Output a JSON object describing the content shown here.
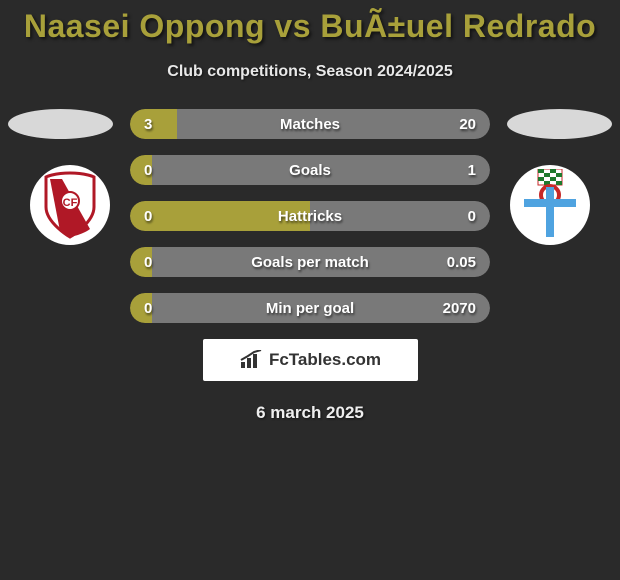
{
  "title": "Naasei Oppong vs BuÃ±uel Redrado",
  "subtitle": "Club competitions, Season 2024/2025",
  "date_text": "6 march 2025",
  "branding_text": "FcTables.com",
  "colors": {
    "left_fill": "#a8a03a",
    "right_fill": "#797979",
    "background": "#2a2a2a",
    "text": "#ffffff"
  },
  "club_left": {
    "name": "Granada",
    "badge_bg": "#ffffff",
    "stripe": "#b01826"
  },
  "club_right": {
    "name": "Racing Ferrol",
    "badge_bg": "#ffffff",
    "cross": "#4fa3e0",
    "checker_a": "#1e7a2e",
    "checker_b": "#ffffff",
    "ring": "#c62828"
  },
  "stats": [
    {
      "label": "Matches",
      "left_val": "3",
      "right_val": "20",
      "left_pct": 13,
      "right_pct": 87
    },
    {
      "label": "Goals",
      "left_val": "0",
      "right_val": "1",
      "left_pct": 6,
      "right_pct": 94
    },
    {
      "label": "Hattricks",
      "left_val": "0",
      "right_val": "0",
      "left_pct": 50,
      "right_pct": 50
    },
    {
      "label": "Goals per match",
      "left_val": "0",
      "right_val": "0.05",
      "left_pct": 6,
      "right_pct": 94
    },
    {
      "label": "Min per goal",
      "left_val": "0",
      "right_val": "2070",
      "left_pct": 6,
      "right_pct": 94
    }
  ]
}
